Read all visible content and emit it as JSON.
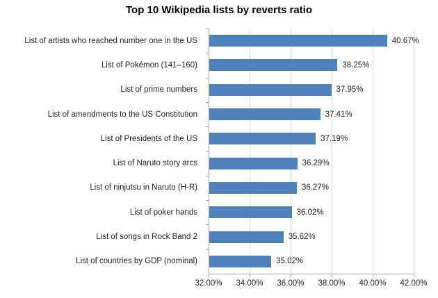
{
  "chart_data": {
    "type": "bar",
    "orientation": "horizontal",
    "title": "Top 10 Wikipedia lists by reverts ratio",
    "categories": [
      "List of artists who reached number one in the US",
      "List of Pokémon (141–160)",
      "List of prime numbers",
      "List of amendments to the US Constitution",
      "List of Presidents of the US",
      "List of Naruto story arcs",
      "List of ninjutsu in Naruto (H-R)",
      "List of poker hands",
      "List of songs in Rock Band 2",
      "List of countries by GDP (nominal)"
    ],
    "values": [
      40.67,
      38.25,
      37.95,
      37.41,
      37.19,
      36.29,
      36.27,
      36.02,
      35.62,
      35.02
    ],
    "value_labels": [
      "40.67%",
      "38.25%",
      "37.95%",
      "37.41%",
      "37.19%",
      "36.29%",
      "36.27%",
      "36.02%",
      "35.62%",
      "35.02%"
    ],
    "xlabel": "",
    "ylabel": "",
    "xlim": [
      32,
      42
    ],
    "x_ticks": [
      32,
      34,
      36,
      38,
      40,
      42
    ],
    "x_tick_labels": [
      "32.00%",
      "34.00%",
      "36.00%",
      "38.00%",
      "40.00%",
      "42.00%"
    ],
    "grid": "vertical",
    "legend": "none",
    "colors": {
      "bar": "#4F81BD",
      "gridline": "#D9D9D9",
      "axis": "#A6A6A6",
      "label_text": "#262626",
      "title_text": "#000000",
      "background": "#FFFFFF"
    }
  }
}
